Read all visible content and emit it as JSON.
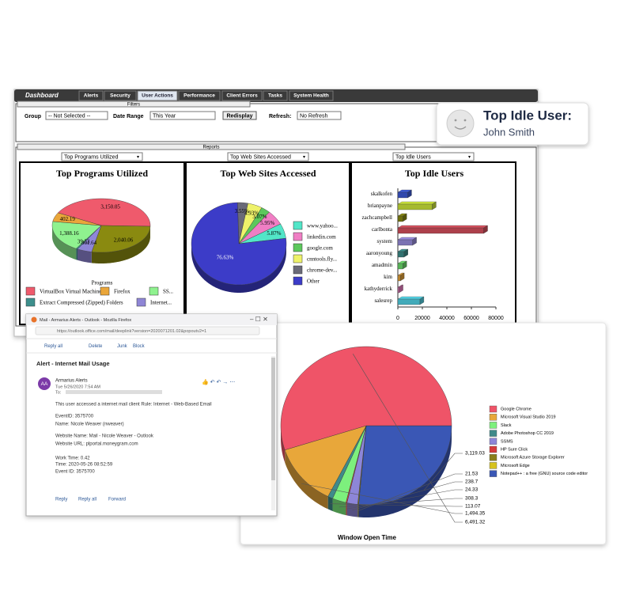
{
  "dashboard": {
    "title": "Dashboard",
    "tabs": [
      "Alerts",
      "Security",
      "User Actions",
      "Performance",
      "Client Errors",
      "Tasks",
      "System Health"
    ],
    "active_tab": 2,
    "filters": {
      "heading": "Filters",
      "group_label": "Group",
      "group_value": "-- Not Selected --",
      "date_label": "Date Range",
      "date_value": "This Year",
      "button": "Redisplay",
      "refresh_label": "Refresh:",
      "refresh_value": "No Refresh"
    },
    "reports": {
      "heading": "Reports",
      "selectors": [
        "Top Programs Utilized",
        "Top Web Sites Accessed",
        "Top Idle Users"
      ]
    }
  },
  "idle_card": {
    "heading": "Top Idle User:",
    "name": "John Smith"
  },
  "programs_chart": {
    "type": "pie",
    "title": "Top Programs Utilized",
    "slices": [
      {
        "value": 3150.05,
        "label": "3,150.05",
        "color": "#ef5a6c"
      },
      {
        "value": 2040.06,
        "label": "2,040.06",
        "color": "#8a8a10"
      },
      {
        "value": 361.64,
        "label": "361.64",
        "color": "#8f86d6"
      },
      {
        "value": 39.53,
        "label": "39.53",
        "color": "#3d8f8c"
      },
      {
        "value": 1388.16,
        "label": "1,388.16",
        "color": "#8ff28f"
      },
      {
        "value": 402.19,
        "label": "402.19",
        "color": "#eaa63a"
      }
    ],
    "legend_title": "Programs",
    "legend": [
      {
        "name": "VirtualBox Virtual Machine",
        "color": "#ef5a6c"
      },
      {
        "name": "Firefox",
        "color": "#eaa63a"
      },
      {
        "name": "SS...",
        "color": "#8ff28f"
      },
      {
        "name": "Extract Compressed (Zipped) Folders",
        "color": "#3d8f8c"
      },
      {
        "name": "Internet...",
        "color": "#8f86d6"
      }
    ]
  },
  "sites_chart": {
    "type": "pie",
    "title": "Top Web Sites Accessed",
    "slices": [
      {
        "value": 3.55,
        "label": "3.55%",
        "color": "#6a6a78"
      },
      {
        "value": 4.93,
        "label": "4.93%",
        "color": "#eef26a"
      },
      {
        "value": 3.07,
        "label": "3.07%",
        "color": "#5cc85c"
      },
      {
        "value": 5.95,
        "label": "5.95%",
        "color": "#f07ec4"
      },
      {
        "value": 5.87,
        "label": "5.87%",
        "color": "#52e6c8"
      },
      {
        "value": 76.63,
        "label": "76.63%",
        "color": "#3c3cc8"
      }
    ],
    "legend": [
      {
        "name": "www.yahoo...",
        "color": "#52e6c8"
      },
      {
        "name": "linkedin.com",
        "color": "#f07ec4"
      },
      {
        "name": "google.com",
        "color": "#5cc85c"
      },
      {
        "name": "cnntools.fly...",
        "color": "#eef26a"
      },
      {
        "name": "chrome-dev...",
        "color": "#6a6a78"
      },
      {
        "name": "Other",
        "color": "#3c3cc8"
      }
    ]
  },
  "idle_chart": {
    "type": "bar",
    "orientation": "horizontal",
    "title": "Top Idle Users",
    "categories": [
      "skalkofen",
      "brianpayne",
      "zachcampbell",
      "carlbonta",
      "system",
      "aaronyoung",
      "amadmin",
      "kim",
      "kathyderrick",
      "salesrep"
    ],
    "values": [
      8000,
      28000,
      4000,
      70000,
      12000,
      5000,
      4000,
      2000,
      1000,
      18000
    ],
    "colors": [
      "#3c5ad8",
      "#cfe83a",
      "#8a8a10",
      "#d8505e",
      "#9a8ee0",
      "#3d8f8c",
      "#6ee06e",
      "#eaa63a",
      "#f07ec4",
      "#52d6e8"
    ],
    "xlim": [
      0,
      80000
    ],
    "xticks": [
      0,
      20000,
      40000,
      60000,
      80000
    ]
  },
  "email": {
    "window_title": "Mail - Armarius Alerts - Outlook - Mozilla Firefox",
    "url": "https://outlook.office.com/mail/deeplink?version=2020071201.02&popoutv2=1",
    "toolbar": [
      "Reply all",
      "Delete",
      "Junk",
      "Block"
    ],
    "subject": "Alert - Internet Mail Usage",
    "avatar": "AA",
    "sender": "Armarius Alerts",
    "date": "Tue 5/26/2020 7:54 AM",
    "to_label": "To:",
    "body": [
      "This user accessed a internet mail client   Rule:  Internet - Web-Based Email",
      "EventID: 3575700",
      "Name: Nicole Weaver (nweaver)",
      "Website Name: Mail - Nicole Weaver - Outlook",
      "Website URL: plportal.moneygram.com",
      "Work Time: 0.42",
      "Time: 2020-05-26 08:52:59",
      "Event ID:  3575700"
    ],
    "actions": [
      "Reply",
      "Reply all",
      "Forward"
    ]
  },
  "window_chart": {
    "type": "pie",
    "title": "Window Open Time",
    "legend": [
      {
        "name": "Google Chrome",
        "color": "#ef5468"
      },
      {
        "name": "Microsoft Visual Studio 2019",
        "color": "#e8a73a"
      },
      {
        "name": "Slack",
        "color": "#7df07d"
      },
      {
        "name": "Adobe Photoshop CC 2019",
        "color": "#3f8a8a"
      },
      {
        "name": "SSMS",
        "color": "#8d86d8"
      },
      {
        "name": "HP Sure Click",
        "color": "#d63b3b"
      },
      {
        "name": "Microsoft Azure Storage Explorer",
        "color": "#8a7f1a"
      },
      {
        "name": "Microsoft Edge",
        "color": "#d6c21e"
      },
      {
        "name": "Notepad++ : a free (GNU) source code editor",
        "color": "#3a57b5"
      }
    ],
    "slices": [
      {
        "value": 3119.03,
        "label": "3,119.03",
        "legend": 8
      },
      {
        "value": 21.53,
        "label": "21.53",
        "legend": 6
      },
      {
        "value": 238.7,
        "label": "238.7",
        "legend": 4
      },
      {
        "value": 24.33,
        "label": "24.33",
        "legend": 5
      },
      {
        "value": 308.3,
        "label": "308.3",
        "legend": 2
      },
      {
        "value": 113.07,
        "label": "113.07",
        "legend": 3
      },
      {
        "value": 1494.35,
        "label": "1,494.35",
        "legend": 1
      },
      {
        "value": 6491.32,
        "label": "6,491.32",
        "legend": 0
      }
    ]
  }
}
